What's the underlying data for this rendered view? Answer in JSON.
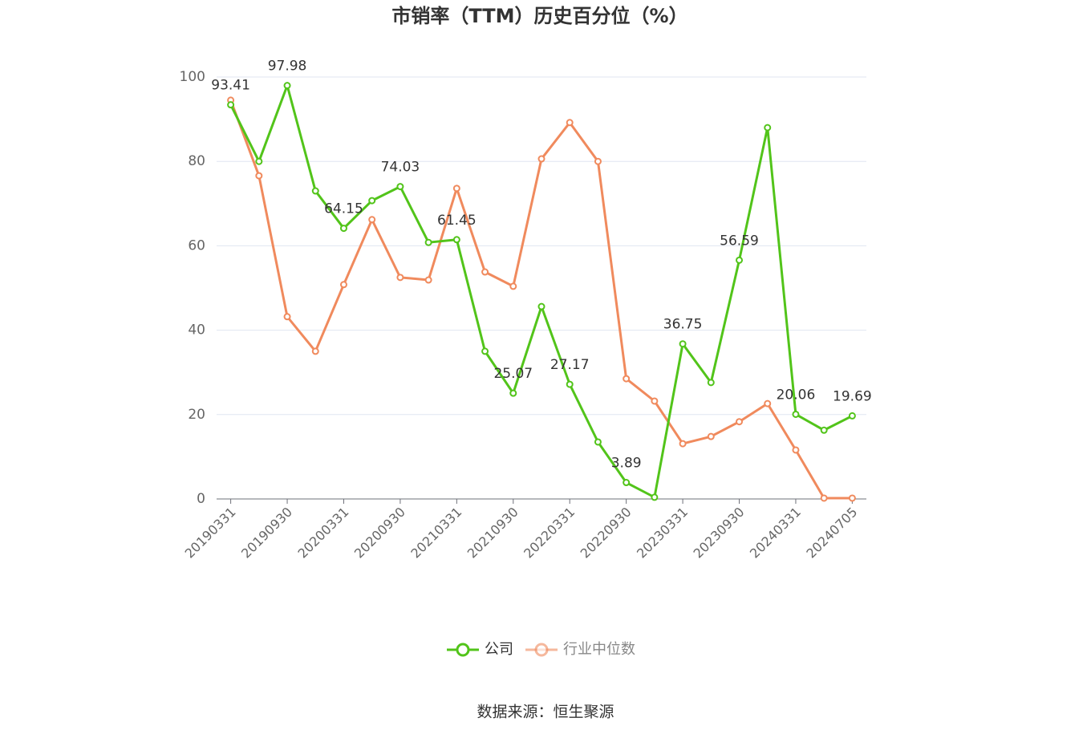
{
  "chart_data": {
    "type": "line",
    "title": "市销率（TTM）历史百分位（%）",
    "source": "数据来源：恒生聚源",
    "categories": [
      "20190331",
      null,
      "20190930",
      null,
      "20200331",
      null,
      "20200930",
      null,
      "20210331",
      null,
      "20210930",
      null,
      "20220331",
      null,
      "20220930",
      null,
      "20230331",
      null,
      "20230930",
      null,
      "20240331",
      null,
      "20240705"
    ],
    "series": [
      {
        "name": "公司",
        "color": "#52c41a",
        "values": [
          93.41,
          80.0,
          97.98,
          73.0,
          64.15,
          70.7,
          74.03,
          60.8,
          61.45,
          35.0,
          25.07,
          45.6,
          27.17,
          13.5,
          3.89,
          0.4,
          36.75,
          27.6,
          56.59,
          88.0,
          20.06,
          16.3,
          19.69
        ]
      },
      {
        "name": "行业中位数",
        "color": "#f08a5d",
        "values": [
          94.5,
          76.6,
          43.2,
          35.0,
          50.8,
          66.2,
          52.5,
          51.9,
          73.6,
          53.8,
          50.4,
          80.6,
          89.2,
          80.0,
          28.5,
          23.2,
          13.1,
          14.8,
          18.3,
          22.6,
          11.6,
          0.2,
          0.2
        ]
      }
    ],
    "ylim": [
      0,
      100
    ],
    "yticks": [
      0,
      20,
      40,
      60,
      80,
      100
    ],
    "grid": true
  }
}
